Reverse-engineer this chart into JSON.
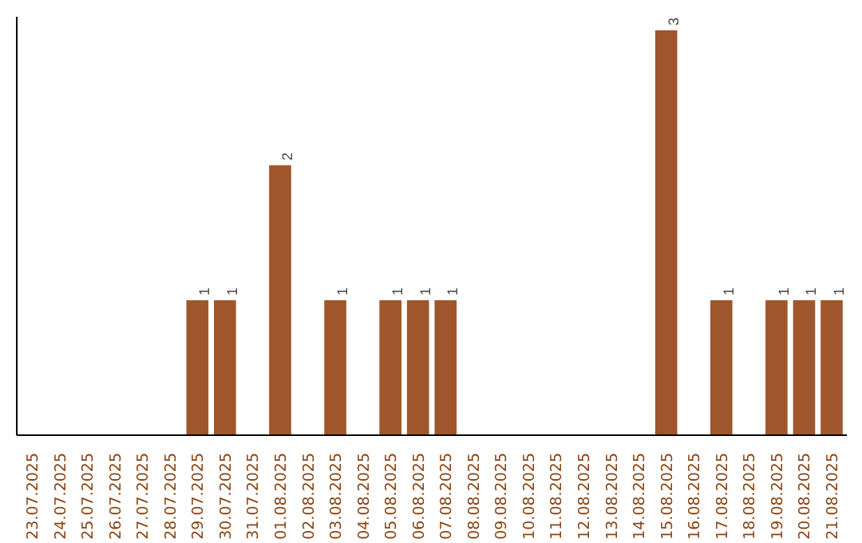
{
  "chart_data": {
    "type": "bar",
    "categories": [
      "23.07.2025",
      "24.07.2025",
      "25.07.2025",
      "26.07.2025",
      "27.07.2025",
      "28.07.2025",
      "29.07.2025",
      "30.07.2025",
      "31.07.2025",
      "01.08.2025",
      "02.08.2025",
      "03.08.2025",
      "04.08.2025",
      "05.08.2025",
      "06.08.2025",
      "07.08.2025",
      "08.08.2025",
      "09.08.2025",
      "10.08.2025",
      "11.08.2025",
      "12.08.2025",
      "13.08.2025",
      "14.08.2025",
      "15.08.2025",
      "16.08.2025",
      "17.08.2025",
      "18.08.2025",
      "19.08.2025",
      "20.08.2025",
      "21.08.2025"
    ],
    "values": [
      0,
      0,
      0,
      0,
      0,
      0,
      1,
      1,
      0,
      2,
      0,
      1,
      0,
      1,
      1,
      1,
      0,
      0,
      0,
      0,
      0,
      0,
      0,
      3,
      0,
      1,
      0,
      1,
      1,
      1
    ],
    "value_labels": [
      null,
      null,
      null,
      null,
      null,
      null,
      "1",
      "1",
      null,
      "2",
      null,
      "1",
      null,
      "1",
      "1",
      "1",
      null,
      null,
      null,
      null,
      null,
      null,
      null,
      "3",
      null,
      "1",
      null,
      "1",
      "1",
      "1"
    ],
    "color": "#a0562c",
    "ylim": [
      0,
      3.1
    ],
    "tick_labels": "x",
    "grid": false
  }
}
